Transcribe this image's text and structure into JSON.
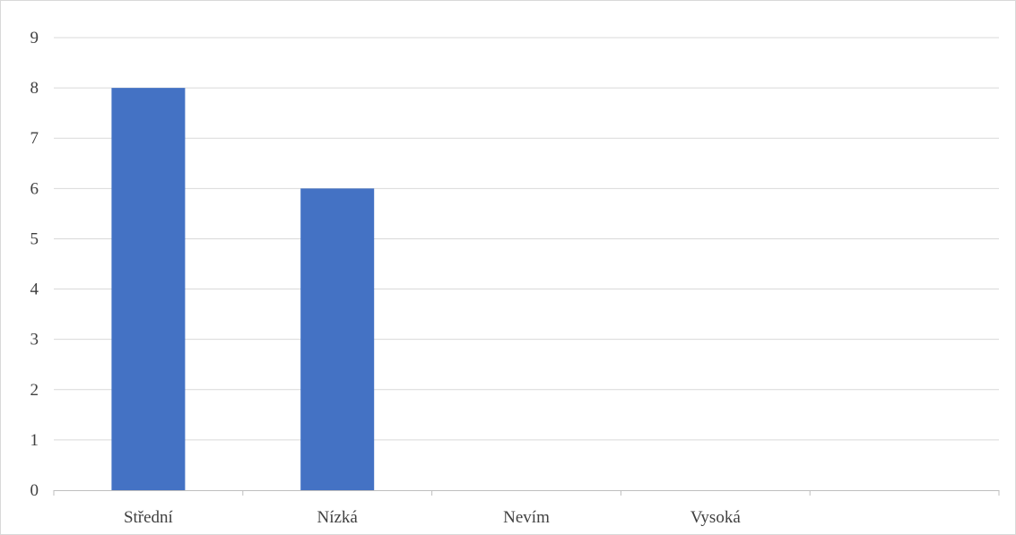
{
  "chart_data": {
    "type": "bar",
    "categories": [
      "Střední",
      "Nízká",
      "Nevím",
      "Vysoká"
    ],
    "values": [
      8,
      6,
      0,
      0
    ],
    "title": "",
    "xlabel": "",
    "ylabel": "",
    "ylim": [
      0,
      9
    ],
    "yticks": [
      "0",
      "1",
      "2",
      "3",
      "4",
      "5",
      "6",
      "7",
      "8",
      "9"
    ],
    "grid": true,
    "legend": "none",
    "colors": {
      "bar": "#4472c4",
      "grid": "#d9d9d9",
      "axis": "#bfbfbf",
      "text": "#404040"
    }
  }
}
